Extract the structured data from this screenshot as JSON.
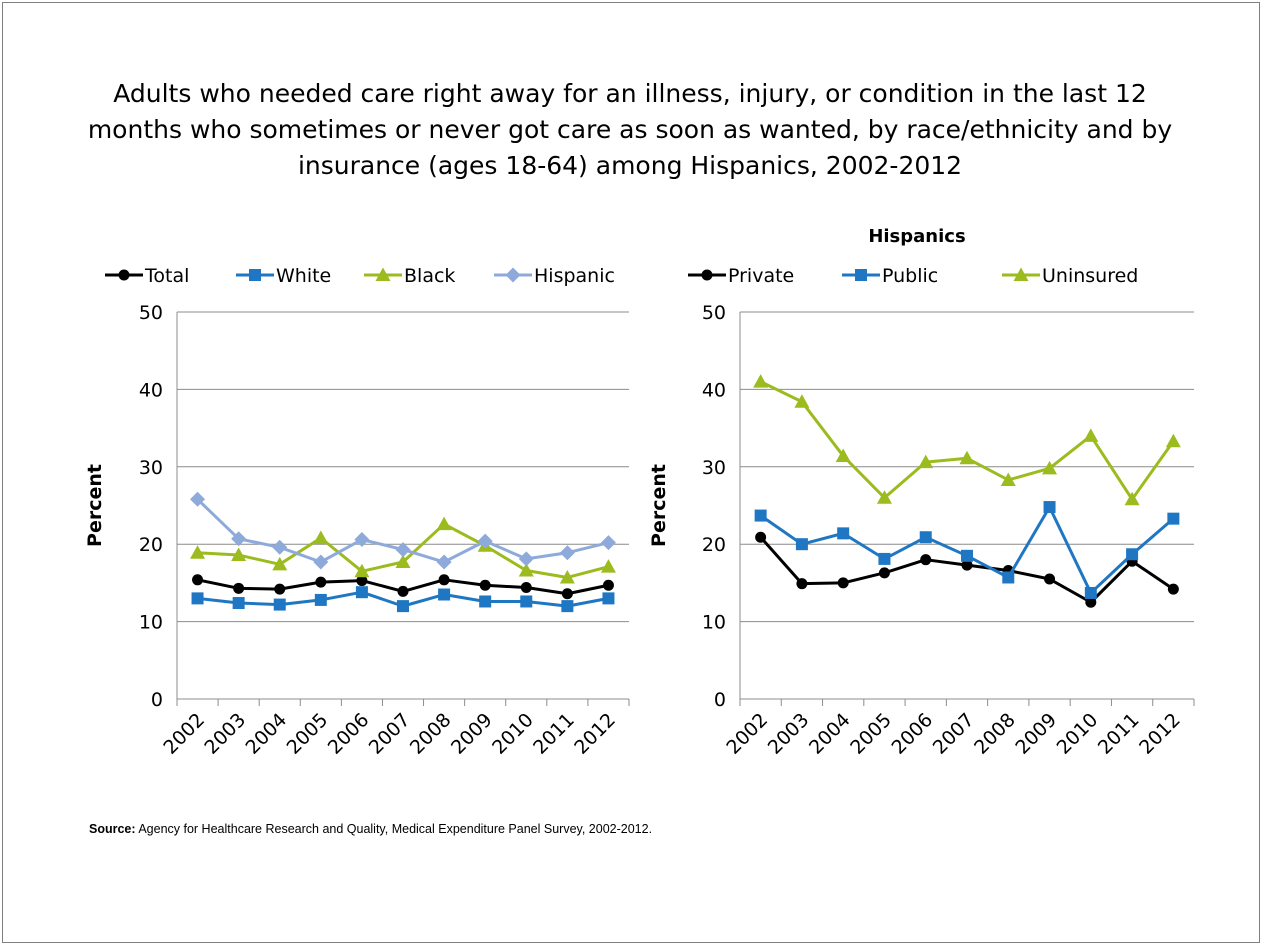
{
  "page": {
    "title": "Adults who needed care right away for an illness, injury, or condition in the last 12 months who sometimes or never got care as soon as wanted, by race/ethnicity and by insurance (ages 18-64) among Hispanics, 2002-2012",
    "title_lines": [
      "Adults who needed care right away for an illness, injury, or condition in the last 12",
      "months who sometimes or never got care as soon as wanted, by race/ethnicity and by",
      "insurance (ages 18-64) among Hispanics, 2002-2012"
    ],
    "source_label": "Source:",
    "source_text": " Agency for Healthcare Research and Quality, Medical Expenditure Panel Survey, 2002-2012."
  },
  "chart_data": [
    {
      "type": "line",
      "title": "",
      "ylabel": "Percent",
      "xlabel": "",
      "ylim": [
        0,
        50
      ],
      "yticks": [
        0,
        10,
        20,
        30,
        40,
        50
      ],
      "grid": true,
      "legend": "top",
      "categories": [
        "2002",
        "2003",
        "2004",
        "2005",
        "2006",
        "2007",
        "2008",
        "2009",
        "2010",
        "2011",
        "2012"
      ],
      "series": [
        {
          "name": "Total",
          "color": "#000000",
          "marker": "circle",
          "values": [
            15.4,
            14.3,
            14.2,
            15.1,
            15.3,
            13.9,
            15.4,
            14.7,
            14.4,
            13.6,
            14.7
          ]
        },
        {
          "name": "White",
          "color": "#1f77c4",
          "marker": "square",
          "values": [
            13.0,
            12.4,
            12.2,
            12.8,
            13.8,
            12.0,
            13.5,
            12.6,
            12.6,
            12.0,
            13.0
          ]
        },
        {
          "name": "Black",
          "color": "#9bbb1e",
          "marker": "triangle",
          "values": [
            18.9,
            18.6,
            17.4,
            20.8,
            16.5,
            17.7,
            22.6,
            19.8,
            16.6,
            15.7,
            17.1
          ]
        },
        {
          "name": "Hispanic",
          "color": "#8eaadb",
          "marker": "diamond",
          "values": [
            25.8,
            20.7,
            19.6,
            17.7,
            20.6,
            19.3,
            17.7,
            20.4,
            18.1,
            18.9,
            20.2
          ]
        }
      ]
    },
    {
      "type": "line",
      "title": "Hispanics",
      "ylabel": "Percent",
      "xlabel": "",
      "ylim": [
        0,
        50
      ],
      "yticks": [
        0,
        10,
        20,
        30,
        40,
        50
      ],
      "grid": true,
      "legend": "top",
      "categories": [
        "2002",
        "2003",
        "2004",
        "2005",
        "2006",
        "2007",
        "2008",
        "2009",
        "2010",
        "2011",
        "2012"
      ],
      "series": [
        {
          "name": "Private",
          "color": "#000000",
          "marker": "circle",
          "values": [
            20.9,
            14.9,
            15.0,
            16.3,
            18.0,
            17.3,
            16.6,
            15.5,
            12.5,
            17.8,
            14.2
          ]
        },
        {
          "name": "Public",
          "color": "#1f77c4",
          "marker": "square",
          "values": [
            23.7,
            20.0,
            21.4,
            18.1,
            20.9,
            18.5,
            15.7,
            24.8,
            13.7,
            18.7,
            23.3
          ]
        },
        {
          "name": "Uninsured",
          "color": "#9bbb1e",
          "marker": "triangle",
          "values": [
            41.0,
            38.4,
            31.4,
            26.0,
            30.6,
            31.1,
            28.3,
            29.8,
            34.0,
            25.8,
            33.3
          ]
        }
      ]
    }
  ]
}
